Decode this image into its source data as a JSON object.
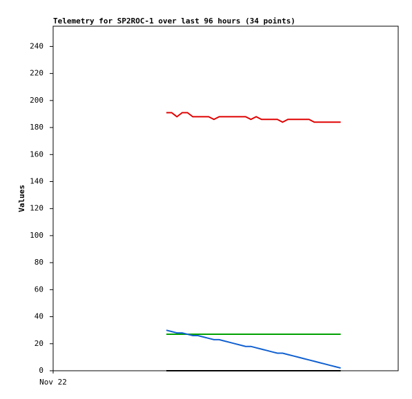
{
  "chart_data": {
    "type": "line",
    "title": "Telemetry for SP2ROC-1 over last 96 hours (34 points)",
    "y_label": "Values",
    "xlim": [
      0,
      96
    ],
    "xticks": [
      {
        "value": 0,
        "label": "Nov 22"
      }
    ],
    "ylim": [
      0,
      255
    ],
    "yticks": [
      0,
      20,
      40,
      60,
      80,
      100,
      120,
      140,
      160,
      180,
      200,
      220,
      240
    ],
    "x": [
      31.5,
      32.97,
      34.44,
      35.91,
      37.38,
      38.85,
      40.32,
      41.79,
      43.26,
      44.73,
      46.2,
      47.67,
      49.14,
      50.61,
      52.08,
      53.55,
      55.02,
      56.49,
      57.96,
      59.43,
      60.9,
      62.37,
      63.84,
      65.31,
      66.78,
      68.25,
      69.72,
      71.19,
      72.66,
      74.13,
      75.6,
      77.07,
      78.54,
      80.0
    ],
    "series": [
      {
        "color": "#e00000",
        "values": [
          191,
          191,
          188,
          191,
          191,
          188,
          188,
          188,
          188,
          186,
          188,
          188,
          188,
          188,
          188,
          188,
          186,
          188,
          186,
          186,
          186,
          186,
          184,
          186,
          186,
          186,
          186,
          186,
          184,
          184,
          184,
          184,
          184,
          184
        ]
      },
      {
        "color": "#00a000",
        "values": [
          27,
          27,
          27,
          27,
          27,
          27,
          27,
          27,
          27,
          27,
          27,
          27,
          27,
          27,
          27,
          27,
          27,
          27,
          27,
          27,
          27,
          27,
          27,
          27,
          27,
          27,
          27,
          27,
          27,
          27,
          27,
          27,
          27,
          27
        ]
      },
      {
        "color": "#1060d0",
        "values": [
          30,
          29,
          28,
          28,
          27,
          26,
          26,
          25,
          24,
          23,
          23,
          22,
          21,
          20,
          19,
          18,
          18,
          17,
          16,
          15,
          14,
          13,
          13,
          12,
          11,
          10,
          9,
          8,
          7,
          6,
          5,
          4,
          3,
          2
        ]
      },
      {
        "color": "#000000",
        "values": [
          0,
          0,
          0,
          0,
          0,
          0,
          0,
          0,
          0,
          0,
          0,
          0,
          0,
          0,
          0,
          0,
          0,
          0,
          0,
          0,
          0,
          0,
          0,
          0,
          0,
          0,
          0,
          0,
          0,
          0,
          0,
          0,
          0,
          0
        ]
      }
    ]
  }
}
